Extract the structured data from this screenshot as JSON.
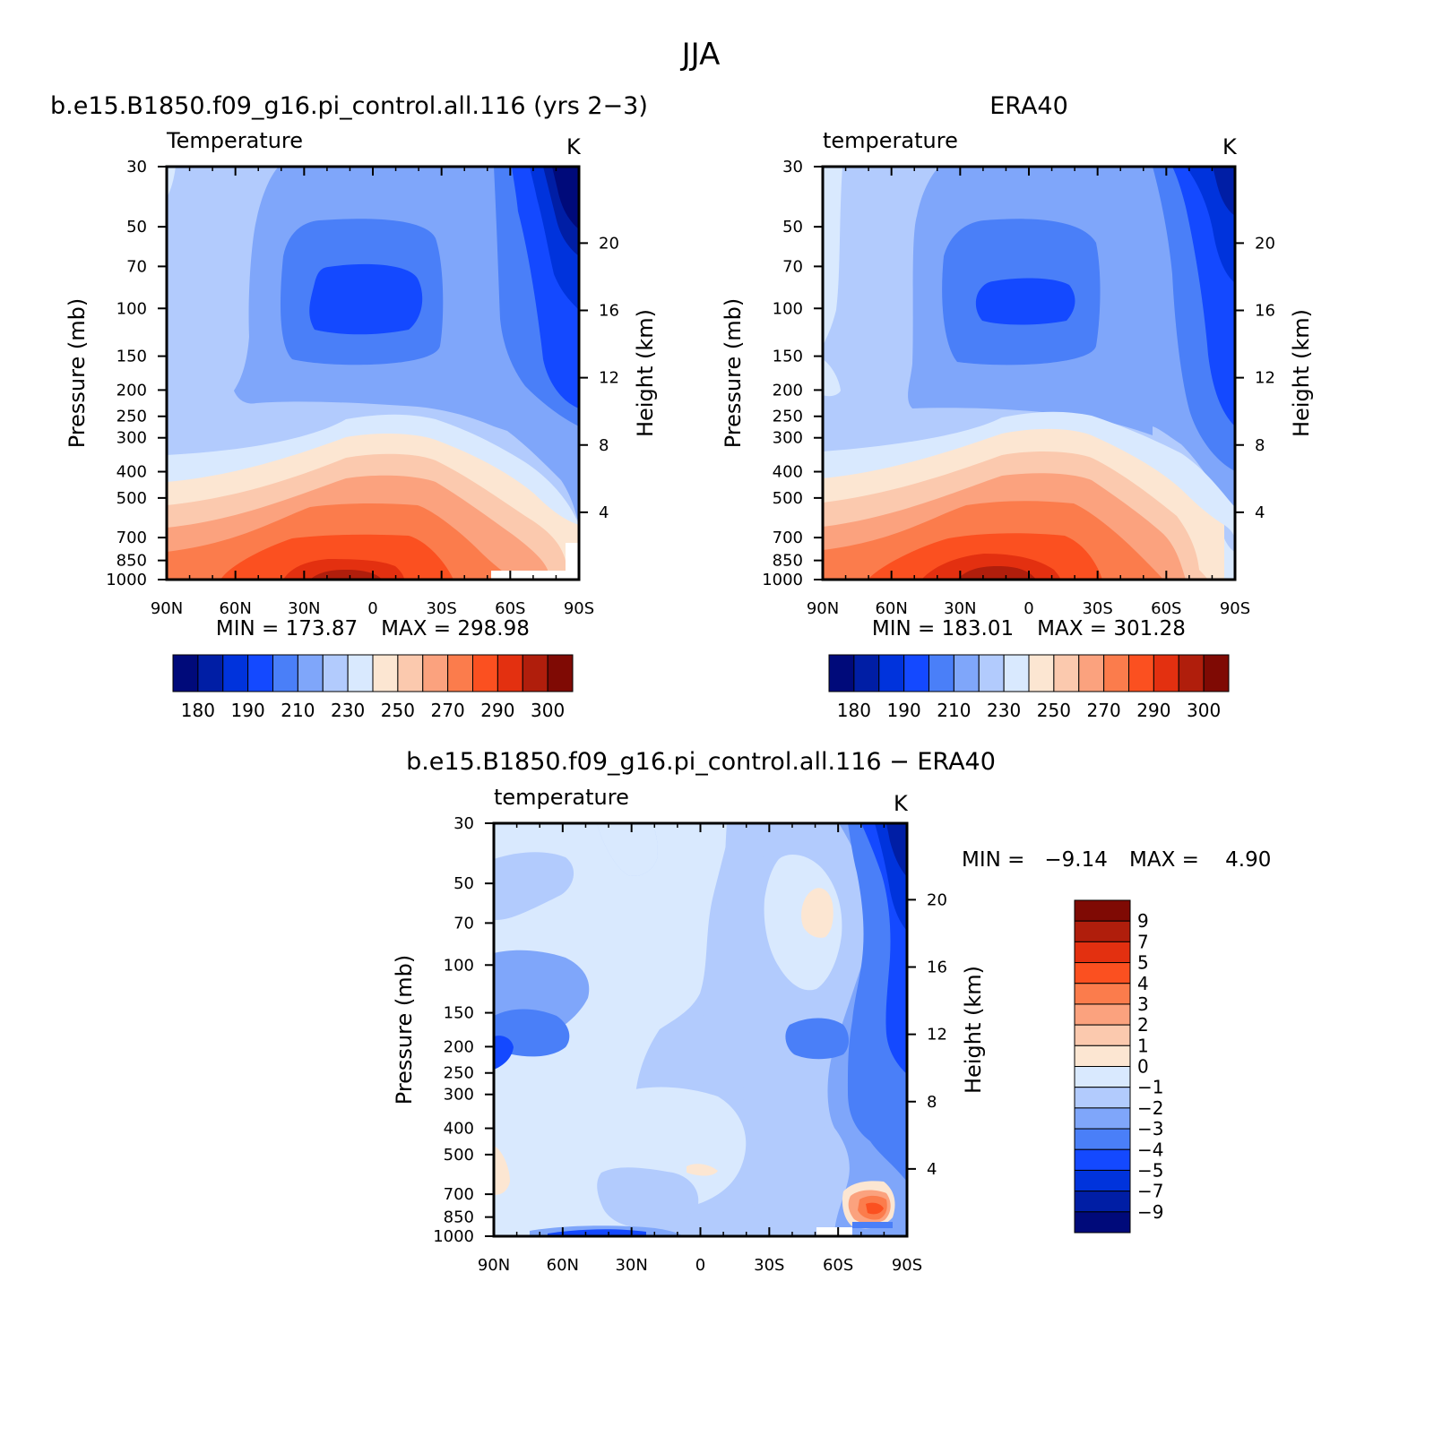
{
  "page_title": "JJA",
  "chart_data": [
    {
      "type": "heatmap",
      "title": "b.e15.B1850.f09_g16.pi_control.all.116 (yrs 2−3)",
      "variable": "Temperature",
      "units": "K",
      "x_ticks": [
        "90N",
        "60N",
        "30N",
        "0",
        "30S",
        "60S",
        "90S"
      ],
      "x_values": [
        90,
        60,
        30,
        0,
        -30,
        -60,
        -90
      ],
      "y_ticks": [
        "30",
        "50",
        "70",
        "100",
        "150",
        "200",
        "250",
        "300",
        "400",
        "500",
        "700",
        "850",
        "1000"
      ],
      "y_values": [
        30,
        50,
        70,
        100,
        150,
        200,
        250,
        300,
        400,
        500,
        700,
        850,
        1000
      ],
      "ylabel": "Pressure (mb)",
      "y_log": true,
      "y_inverted": true,
      "right_ticks": [
        "20",
        "16",
        "12",
        "8",
        "4"
      ],
      "right_values": [
        20,
        16,
        12,
        8,
        4
      ],
      "right_label": "Height (km)",
      "min_label": "MIN = 173.87",
      "max_label": "MAX = 298.98",
      "min": 173.87,
      "max": 298.98,
      "colorbar_labels": [
        "180",
        "190",
        "210",
        "230",
        "250",
        "270",
        "290",
        "300"
      ],
      "colorbar_colors": [
        "#000a7a",
        "#001ea5",
        "#0033dc",
        "#1449ff",
        "#4a7ff8",
        "#7fa6fa",
        "#b2cbfd",
        "#d9e9fe",
        "#fce6d2",
        "#fbc9ae",
        "#fba27e",
        "#fb7c4c",
        "#fb5020",
        "#e33010",
        "#b01e0c",
        "#7f0a04"
      ]
    },
    {
      "type": "heatmap",
      "title": "ERA40",
      "variable": "temperature",
      "units": "K",
      "x_ticks": [
        "90N",
        "60N",
        "30N",
        "0",
        "30S",
        "60S",
        "90S"
      ],
      "x_values": [
        90,
        60,
        30,
        0,
        -30,
        -60,
        -90
      ],
      "y_ticks": [
        "30",
        "50",
        "70",
        "100",
        "150",
        "200",
        "250",
        "300",
        "400",
        "500",
        "700",
        "850",
        "1000"
      ],
      "y_values": [
        30,
        50,
        70,
        100,
        150,
        200,
        250,
        300,
        400,
        500,
        700,
        850,
        1000
      ],
      "ylabel": "Pressure (mb)",
      "y_log": true,
      "y_inverted": true,
      "right_ticks": [
        "20",
        "16",
        "12",
        "8",
        "4"
      ],
      "right_values": [
        20,
        16,
        12,
        8,
        4
      ],
      "right_label": "Height (km)",
      "min_label": "MIN = 183.01",
      "max_label": "MAX = 301.28",
      "min": 183.01,
      "max": 301.28,
      "colorbar_labels": [
        "180",
        "190",
        "210",
        "230",
        "250",
        "270",
        "290",
        "300"
      ],
      "colorbar_colors": [
        "#000a7a",
        "#001ea5",
        "#0033dc",
        "#1449ff",
        "#4a7ff8",
        "#7fa6fa",
        "#b2cbfd",
        "#d9e9fe",
        "#fce6d2",
        "#fbc9ae",
        "#fba27e",
        "#fb7c4c",
        "#fb5020",
        "#e33010",
        "#b01e0c",
        "#7f0a04"
      ]
    },
    {
      "type": "heatmap",
      "title": "b.e15.B1850.f09_g16.pi_control.all.116 − ERA40",
      "variable": "temperature",
      "units": "K",
      "x_ticks": [
        "90N",
        "60N",
        "30N",
        "0",
        "30S",
        "60S",
        "90S"
      ],
      "x_values": [
        90,
        60,
        30,
        0,
        -30,
        -60,
        -90
      ],
      "y_ticks": [
        "30",
        "50",
        "70",
        "100",
        "150",
        "200",
        "250",
        "300",
        "400",
        "500",
        "700",
        "850",
        "1000"
      ],
      "y_values": [
        30,
        50,
        70,
        100,
        150,
        200,
        250,
        300,
        400,
        500,
        700,
        850,
        1000
      ],
      "ylabel": "Pressure (mb)",
      "y_log": true,
      "y_inverted": true,
      "right_ticks": [
        "20",
        "16",
        "12",
        "8",
        "4"
      ],
      "right_values": [
        20,
        16,
        12,
        8,
        4
      ],
      "right_label": "Height (km)",
      "min_label": "MIN =   −9.14",
      "max_label": "MAX =    4.90",
      "min": -9.14,
      "max": 4.9,
      "colorbar_labels": [
        "9",
        "7",
        "5",
        "4",
        "3",
        "2",
        "1",
        "0",
        "−1",
        "−2",
        "−3",
        "−4",
        "−5",
        "−7",
        "−9"
      ],
      "colorbar_colors": [
        "#7f0a04",
        "#b01e0c",
        "#e33010",
        "#fb5020",
        "#fb7c4c",
        "#fba27e",
        "#fbc9ae",
        "#fce6d2",
        "#d9e9fe",
        "#b2cbfd",
        "#7fa6fa",
        "#4a7ff8",
        "#1449ff",
        "#0033dc",
        "#001ea5",
        "#000a7a"
      ]
    }
  ]
}
